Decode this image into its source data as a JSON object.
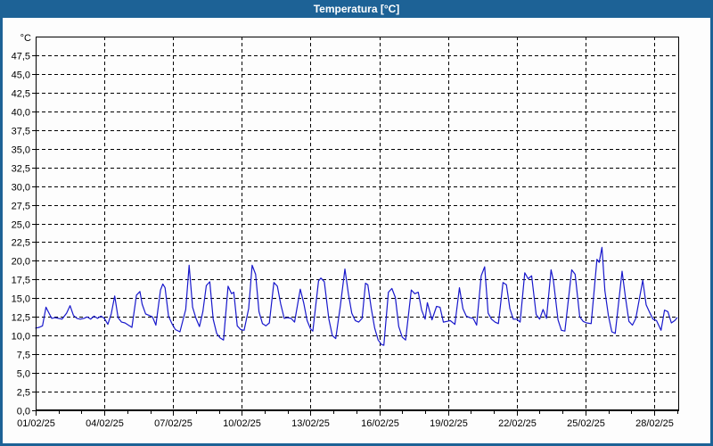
{
  "window": {
    "title": "Temperatura [°C]",
    "titlebar_color": "#1d6296",
    "border_color": "#1d6296",
    "background_color": "#fdfdfd"
  },
  "chart_data": {
    "type": "line",
    "title": "Temperatura [°C]",
    "unit_label": "°C",
    "legend": "none",
    "grid": {
      "visible": true,
      "style": "dashed",
      "color": "#000000"
    },
    "line_color": "#1818cc",
    "x_axis": {
      "kind": "date",
      "range_days": [
        1,
        29.05
      ],
      "minor_tick_interval_days": 1,
      "label_days": [
        1,
        4,
        7,
        10,
        13,
        16,
        19,
        22,
        25,
        28
      ],
      "labels": [
        "01/02/25",
        "04/02/25",
        "07/02/25",
        "10/02/25",
        "13/02/25",
        "16/02/25",
        "19/02/25",
        "22/02/25",
        "25/02/25",
        "28/02/25"
      ]
    },
    "y_axis": {
      "min": 0,
      "max": 50,
      "tick_step": 2.5,
      "tick_labels": [
        "0,0",
        "2,5",
        "5,0",
        "7,5",
        "10,0",
        "12,5",
        "15,0",
        "17,5",
        "20,0",
        "22,5",
        "25,0",
        "27,5",
        "30,0",
        "32,5",
        "35,0",
        "37,5",
        "40,0",
        "42,5",
        "45,0",
        "47,5"
      ]
    },
    "series": [
      {
        "name": "Temperatura",
        "points": [
          [
            1.0,
            11.0
          ],
          [
            1.15,
            11.1
          ],
          [
            1.3,
            11.3
          ],
          [
            1.45,
            13.8
          ],
          [
            1.55,
            13.2
          ],
          [
            1.7,
            12.3
          ],
          [
            1.85,
            12.4
          ],
          [
            2.0,
            12.3
          ],
          [
            2.15,
            12.2
          ],
          [
            2.35,
            13.0
          ],
          [
            2.5,
            14.0
          ],
          [
            2.65,
            12.7
          ],
          [
            2.8,
            12.3
          ],
          [
            2.95,
            12.2
          ],
          [
            3.1,
            12.3
          ],
          [
            3.25,
            12.5
          ],
          [
            3.4,
            12.2
          ],
          [
            3.55,
            12.6
          ],
          [
            3.7,
            12.3
          ],
          [
            3.85,
            12.6
          ],
          [
            4.0,
            12.3
          ],
          [
            4.15,
            11.5
          ],
          [
            4.3,
            12.9
          ],
          [
            4.45,
            15.3
          ],
          [
            4.6,
            12.4
          ],
          [
            4.75,
            11.8
          ],
          [
            4.9,
            11.7
          ],
          [
            5.05,
            11.4
          ],
          [
            5.2,
            11.1
          ],
          [
            5.4,
            15.4
          ],
          [
            5.55,
            15.9
          ],
          [
            5.65,
            14.2
          ],
          [
            5.8,
            12.9
          ],
          [
            5.95,
            12.7
          ],
          [
            6.1,
            12.5
          ],
          [
            6.25,
            11.4
          ],
          [
            6.45,
            16.1
          ],
          [
            6.55,
            16.9
          ],
          [
            6.65,
            16.4
          ],
          [
            6.8,
            12.6
          ],
          [
            6.95,
            11.6
          ],
          [
            7.1,
            10.8
          ],
          [
            7.3,
            10.5
          ],
          [
            7.55,
            13.5
          ],
          [
            7.7,
            19.4
          ],
          [
            7.85,
            13.8
          ],
          [
            8.0,
            12.3
          ],
          [
            8.15,
            11.2
          ],
          [
            8.3,
            13.2
          ],
          [
            8.45,
            16.7
          ],
          [
            8.6,
            17.2
          ],
          [
            8.75,
            12.2
          ],
          [
            8.9,
            10.3
          ],
          [
            9.05,
            9.7
          ],
          [
            9.2,
            9.4
          ],
          [
            9.4,
            16.6
          ],
          [
            9.55,
            15.6
          ],
          [
            9.65,
            15.8
          ],
          [
            9.8,
            11.3
          ],
          [
            9.95,
            10.8
          ],
          [
            10.1,
            10.7
          ],
          [
            10.3,
            13.6
          ],
          [
            10.45,
            19.4
          ],
          [
            10.6,
            18.2
          ],
          [
            10.75,
            13.2
          ],
          [
            10.9,
            11.6
          ],
          [
            11.05,
            11.3
          ],
          [
            11.2,
            11.7
          ],
          [
            11.4,
            17.1
          ],
          [
            11.55,
            16.6
          ],
          [
            11.7,
            14.2
          ],
          [
            11.85,
            12.3
          ],
          [
            12.0,
            12.4
          ],
          [
            12.15,
            12.3
          ],
          [
            12.3,
            11.8
          ],
          [
            12.55,
            16.2
          ],
          [
            12.7,
            14.4
          ],
          [
            12.85,
            12.0
          ],
          [
            13.0,
            10.9
          ],
          [
            13.1,
            10.6
          ],
          [
            13.35,
            17.3
          ],
          [
            13.45,
            17.7
          ],
          [
            13.6,
            17.2
          ],
          [
            13.8,
            12.2
          ],
          [
            13.95,
            10.0
          ],
          [
            14.1,
            9.6
          ],
          [
            14.3,
            14.0
          ],
          [
            14.5,
            18.9
          ],
          [
            14.65,
            15.6
          ],
          [
            14.8,
            13.0
          ],
          [
            14.95,
            12.0
          ],
          [
            15.1,
            11.8
          ],
          [
            15.25,
            12.3
          ],
          [
            15.4,
            17.0
          ],
          [
            15.5,
            16.8
          ],
          [
            15.65,
            13.6
          ],
          [
            15.8,
            11.0
          ],
          [
            15.95,
            9.4
          ],
          [
            16.1,
            8.8
          ],
          [
            16.2,
            8.7
          ],
          [
            16.4,
            15.8
          ],
          [
            16.55,
            16.3
          ],
          [
            16.7,
            15.1
          ],
          [
            16.85,
            11.2
          ],
          [
            17.0,
            9.8
          ],
          [
            17.15,
            9.4
          ],
          [
            17.4,
            16.1
          ],
          [
            17.55,
            15.6
          ],
          [
            17.7,
            15.8
          ],
          [
            17.85,
            13.4
          ],
          [
            18.0,
            12.2
          ],
          [
            18.1,
            14.4
          ],
          [
            18.3,
            12.1
          ],
          [
            18.5,
            13.9
          ],
          [
            18.65,
            13.8
          ],
          [
            18.8,
            11.8
          ],
          [
            18.95,
            11.9
          ],
          [
            19.1,
            12.0
          ],
          [
            19.3,
            11.5
          ],
          [
            19.5,
            16.4
          ],
          [
            19.65,
            13.6
          ],
          [
            19.8,
            12.6
          ],
          [
            19.95,
            12.4
          ],
          [
            20.1,
            12.3
          ],
          [
            20.25,
            11.4
          ],
          [
            20.45,
            18.0
          ],
          [
            20.6,
            19.2
          ],
          [
            20.75,
            13.0
          ],
          [
            20.9,
            12.2
          ],
          [
            21.05,
            11.8
          ],
          [
            21.2,
            11.6
          ],
          [
            21.4,
            17.1
          ],
          [
            21.55,
            16.8
          ],
          [
            21.7,
            13.6
          ],
          [
            21.85,
            12.2
          ],
          [
            22.0,
            12.2
          ],
          [
            22.15,
            11.8
          ],
          [
            22.35,
            18.4
          ],
          [
            22.5,
            17.6
          ],
          [
            22.65,
            18.0
          ],
          [
            22.85,
            12.8
          ],
          [
            23.0,
            12.2
          ],
          [
            23.15,
            13.5
          ],
          [
            23.3,
            12.3
          ],
          [
            23.5,
            18.8
          ],
          [
            23.6,
            17.4
          ],
          [
            23.8,
            12.1
          ],
          [
            23.95,
            10.7
          ],
          [
            24.1,
            10.6
          ],
          [
            24.4,
            18.8
          ],
          [
            24.55,
            18.2
          ],
          [
            24.75,
            12.5
          ],
          [
            24.9,
            11.9
          ],
          [
            25.05,
            11.7
          ],
          [
            25.25,
            11.6
          ],
          [
            25.5,
            20.2
          ],
          [
            25.6,
            19.8
          ],
          [
            25.72,
            21.8
          ],
          [
            25.85,
            16.0
          ],
          [
            26.0,
            12.7
          ],
          [
            26.15,
            10.5
          ],
          [
            26.3,
            10.3
          ],
          [
            26.6,
            18.6
          ],
          [
            26.75,
            15.0
          ],
          [
            26.9,
            11.9
          ],
          [
            27.05,
            11.4
          ],
          [
            27.2,
            12.3
          ],
          [
            27.5,
            17.4
          ],
          [
            27.65,
            14.1
          ],
          [
            27.8,
            13.1
          ],
          [
            27.95,
            12.2
          ],
          [
            28.1,
            12.0
          ],
          [
            28.3,
            10.7
          ],
          [
            28.45,
            13.4
          ],
          [
            28.6,
            13.2
          ],
          [
            28.75,
            11.7
          ],
          [
            28.9,
            12.0
          ],
          [
            29.0,
            12.4
          ]
        ]
      }
    ]
  }
}
